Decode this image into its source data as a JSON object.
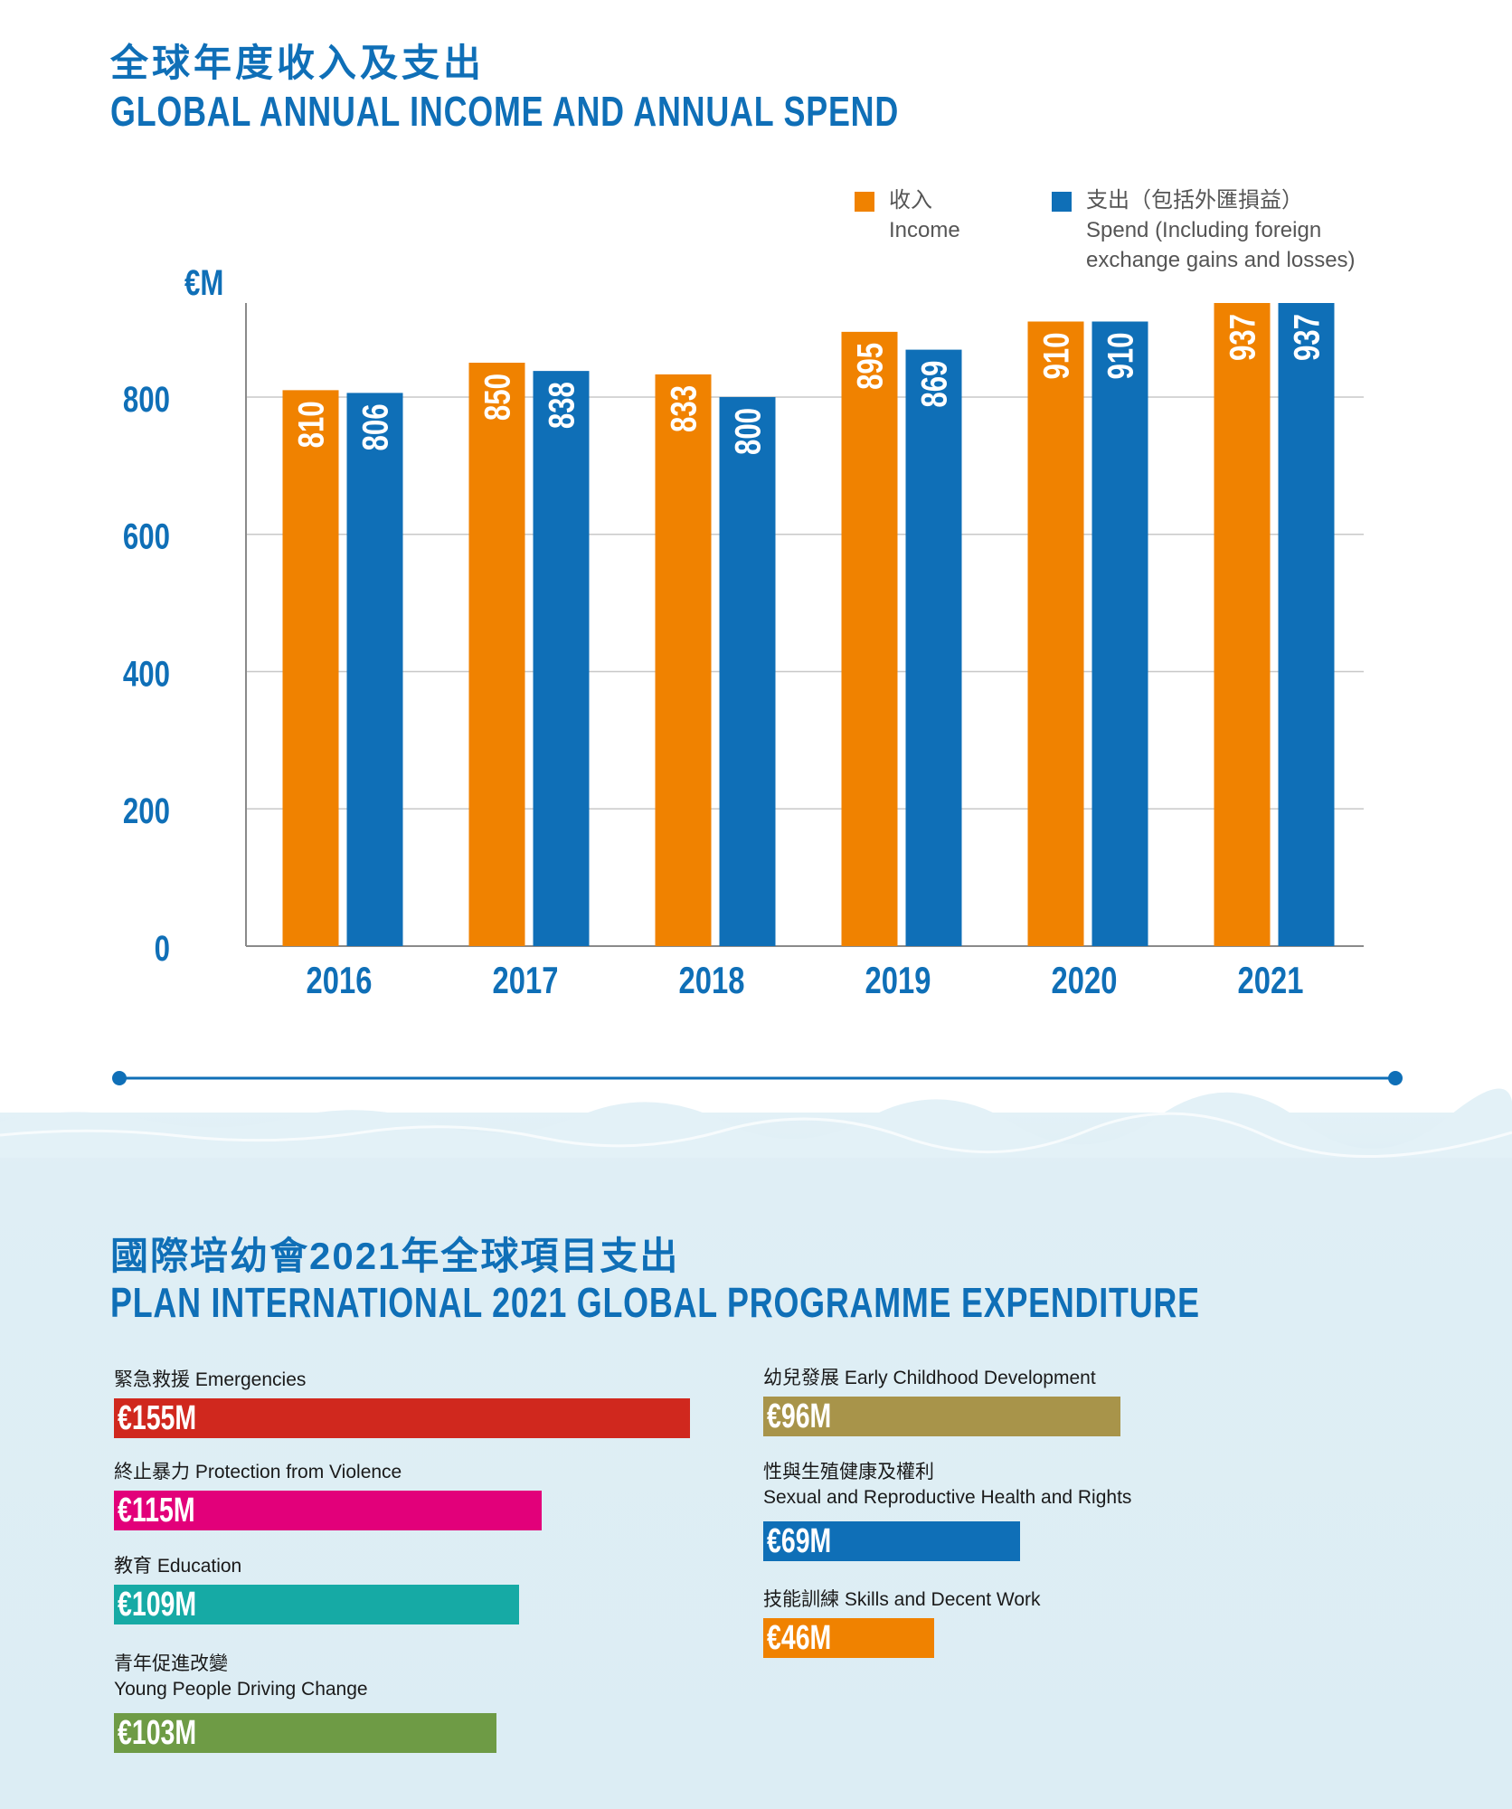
{
  "header": {
    "title_cn": "全球年度收入及支出",
    "title_en": "GLOBAL ANNUAL INCOME AND ANNUAL SPEND"
  },
  "colors": {
    "income": "#f08200",
    "spend": "#0f6fb7",
    "axis_text": "#0f6fb7",
    "title": "#0f6fb7"
  },
  "chart_data": {
    "type": "bar",
    "title": "GLOBAL ANNUAL INCOME AND ANNUAL SPEND",
    "unit": "€M",
    "categories": [
      "2016",
      "2017",
      "2018",
      "2019",
      "2020",
      "2021"
    ],
    "series": [
      {
        "name": "Income",
        "name_cn": "收入",
        "color": "#f08200",
        "values": [
          810,
          850,
          833,
          895,
          910,
          937
        ]
      },
      {
        "name": "Spend (Including foreign exchange gains and losses)",
        "name_cn": "支出（包括外匯損益）",
        "color": "#0f6fb7",
        "values": [
          806,
          838,
          800,
          869,
          910,
          937
        ]
      }
    ],
    "ylim": [
      0,
      937
    ],
    "yticks": [
      0,
      200,
      400,
      600,
      800
    ],
    "grid": true,
    "legend_position": "top-right",
    "legend": [
      {
        "line1": "收入",
        "line2": "Income",
        "line3": ""
      },
      {
        "line1": "支出（包括外匯損益）",
        "line2": "Spend (Including foreign",
        "line3": "exchange gains and losses)"
      }
    ]
  },
  "programme": {
    "title_cn": "國際培幼會2021年全球項目支出",
    "title_en": "PLAN INTERNATIONAL 2021 GLOBAL PROGRAMME EXPENDITURE",
    "items": [
      {
        "label": "緊急救援 Emergencies",
        "label2": "",
        "value": "€155M",
        "amount": 155,
        "color": "#d0281e",
        "column": "left"
      },
      {
        "label": "終止暴力 Protection from Violence",
        "label2": "",
        "value": "€115M",
        "amount": 115,
        "color": "#e2007a",
        "column": "left"
      },
      {
        "label": "教育 Education",
        "label2": "",
        "value": "€109M",
        "amount": 109,
        "color": "#16aaa5",
        "column": "left"
      },
      {
        "label": "青年促進改變",
        "label2": "Young People Driving Change",
        "value": "€103M",
        "amount": 103,
        "color": "#6e9b45",
        "column": "left"
      },
      {
        "label": "幼兒發展 Early Childhood Development",
        "label2": "",
        "value": "€96M",
        "amount": 96,
        "color": "#a8944a",
        "column": "right"
      },
      {
        "label": "性與生殖健康及權利",
        "label2": "Sexual and Reproductive Health and Rights",
        "value": "€69M",
        "amount": 69,
        "color": "#0f6fb7",
        "column": "right"
      },
      {
        "label": "技能訓練 Skills and Decent Work",
        "label2": "",
        "value": "€46M",
        "amount": 46,
        "color": "#f08200",
        "column": "right"
      }
    ]
  }
}
